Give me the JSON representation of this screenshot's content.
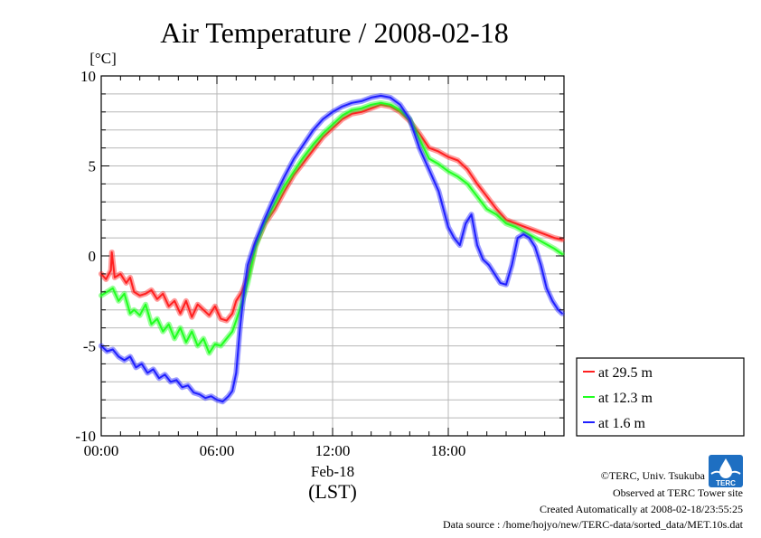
{
  "chart_data": {
    "type": "line",
    "title": "Air Temperature / 2008-02-18",
    "ylabel": "[°C]",
    "xlabel_lines": [
      "Feb-18",
      "(LST)"
    ],
    "x_unit": "hour of day (LST)",
    "xlim": [
      0,
      24
    ],
    "ylim": [
      -10,
      10
    ],
    "x_ticks": [
      0,
      6,
      12,
      18
    ],
    "x_tick_labels": [
      "00:00",
      "06:00",
      "12:00",
      "18:00"
    ],
    "y_ticks": [
      -10,
      -5,
      0,
      5,
      10
    ],
    "y_tick_labels": [
      "-10",
      "-5",
      "0",
      "5",
      "10"
    ],
    "grid": true,
    "legend_position": "right",
    "series": [
      {
        "name": "at 29.5 m",
        "color": "#ff2020",
        "x": [
          0,
          0.25,
          0.5,
          0.55,
          0.7,
          1.0,
          1.3,
          1.5,
          1.7,
          2.0,
          2.3,
          2.6,
          2.9,
          3.2,
          3.5,
          3.8,
          4.1,
          4.4,
          4.7,
          5.0,
          5.3,
          5.6,
          5.9,
          6.2,
          6.5,
          6.8,
          7.0,
          7.3,
          7.6,
          8.0,
          8.5,
          9.0,
          9.5,
          10.0,
          10.5,
          11.0,
          11.5,
          12.0,
          12.5,
          13.0,
          13.5,
          14.0,
          14.5,
          15.0,
          15.5,
          16.0,
          16.5,
          17.0,
          17.5,
          18.0,
          18.5,
          19.0,
          19.5,
          20.0,
          20.5,
          21.0,
          21.5,
          22.0,
          22.5,
          23.0,
          23.5,
          23.9
        ],
        "y": [
          -1.0,
          -1.3,
          -0.8,
          0.2,
          -1.2,
          -1.0,
          -1.5,
          -1.2,
          -2.0,
          -2.2,
          -2.1,
          -1.9,
          -2.4,
          -2.1,
          -2.8,
          -2.5,
          -3.2,
          -2.5,
          -3.4,
          -2.7,
          -3.0,
          -3.3,
          -2.8,
          -3.5,
          -3.6,
          -3.2,
          -2.5,
          -2.0,
          -1.2,
          0.6,
          1.8,
          2.6,
          3.6,
          4.5,
          5.2,
          5.9,
          6.6,
          7.1,
          7.6,
          7.9,
          8.0,
          8.2,
          8.4,
          8.3,
          8.0,
          7.5,
          6.8,
          6.0,
          5.8,
          5.5,
          5.3,
          4.8,
          4.0,
          3.3,
          2.6,
          2.0,
          1.8,
          1.6,
          1.4,
          1.2,
          1.0,
          0.9
        ]
      },
      {
        "name": "at 12.3 m",
        "color": "#20ff20",
        "x": [
          0,
          0.3,
          0.6,
          0.9,
          1.2,
          1.5,
          1.7,
          2.0,
          2.3,
          2.6,
          2.9,
          3.2,
          3.5,
          3.8,
          4.1,
          4.4,
          4.7,
          5.0,
          5.3,
          5.6,
          5.9,
          6.2,
          6.5,
          6.8,
          7.0,
          7.3,
          7.6,
          8.0,
          8.5,
          9.0,
          9.5,
          10.0,
          10.5,
          11.0,
          11.5,
          12.0,
          12.5,
          13.0,
          13.5,
          14.0,
          14.5,
          15.0,
          15.5,
          16.0,
          16.5,
          17.0,
          17.5,
          18.0,
          18.5,
          19.0,
          19.5,
          20.0,
          20.5,
          21.0,
          21.5,
          22.0,
          22.5,
          23.0,
          23.5,
          23.9
        ],
        "y": [
          -2.2,
          -2.0,
          -1.8,
          -2.5,
          -2.1,
          -3.2,
          -3.0,
          -3.3,
          -2.7,
          -3.8,
          -3.5,
          -4.2,
          -3.8,
          -4.6,
          -4.0,
          -4.8,
          -4.2,
          -5.0,
          -4.6,
          -5.4,
          -4.9,
          -5.0,
          -4.6,
          -4.2,
          -3.6,
          -2.6,
          -1.5,
          0.5,
          1.9,
          2.9,
          3.9,
          4.7,
          5.5,
          6.2,
          6.8,
          7.3,
          7.8,
          8.1,
          8.2,
          8.4,
          8.5,
          8.4,
          8.1,
          7.6,
          6.5,
          5.4,
          5.1,
          4.7,
          4.4,
          4.0,
          3.3,
          2.6,
          2.3,
          1.8,
          1.6,
          1.3,
          1.0,
          0.7,
          0.4,
          0.1
        ]
      },
      {
        "name": "at 1.6 m",
        "color": "#2020ff",
        "x": [
          0,
          0.3,
          0.6,
          0.9,
          1.2,
          1.5,
          1.8,
          2.1,
          2.4,
          2.7,
          3.0,
          3.3,
          3.6,
          3.9,
          4.2,
          4.5,
          4.8,
          5.1,
          5.4,
          5.7,
          6.0,
          6.3,
          6.6,
          6.8,
          7.0,
          7.2,
          7.4,
          7.6,
          8.0,
          8.5,
          9.0,
          9.5,
          10.0,
          10.5,
          11.0,
          11.5,
          12.0,
          12.5,
          13.0,
          13.5,
          14.0,
          14.5,
          15.0,
          15.5,
          16.0,
          16.5,
          17.0,
          17.5,
          18.0,
          18.3,
          18.6,
          18.9,
          19.2,
          19.5,
          19.8,
          20.1,
          20.4,
          20.7,
          21.0,
          21.3,
          21.6,
          21.9,
          22.2,
          22.5,
          22.8,
          23.1,
          23.4,
          23.7,
          23.9
        ],
        "y": [
          -5.0,
          -5.3,
          -5.2,
          -5.6,
          -5.8,
          -5.6,
          -6.2,
          -6.0,
          -6.5,
          -6.3,
          -6.8,
          -6.6,
          -7.0,
          -6.9,
          -7.3,
          -7.2,
          -7.6,
          -7.7,
          -7.9,
          -7.8,
          -8.0,
          -8.1,
          -7.8,
          -7.5,
          -6.5,
          -4.0,
          -2.0,
          -0.5,
          0.8,
          2.1,
          3.3,
          4.4,
          5.4,
          6.2,
          7.0,
          7.6,
          8.0,
          8.3,
          8.5,
          8.6,
          8.8,
          8.9,
          8.8,
          8.4,
          7.6,
          6.0,
          4.8,
          3.6,
          1.6,
          1.0,
          0.6,
          1.8,
          2.3,
          0.6,
          -0.2,
          -0.5,
          -1.0,
          -1.5,
          -1.6,
          -0.5,
          1.0,
          1.2,
          1.0,
          0.5,
          -0.5,
          -1.8,
          -2.5,
          -3.0,
          -3.2
        ]
      }
    ]
  },
  "credits": {
    "copyright": "©TERC, Univ. Tsukuba",
    "observed": "Observed at TERC Tower site",
    "created": "Created Automatically at 2008-02-18/23:55:25",
    "source": "Data source : /home/hojyo/new/TERC-data/sorted_data/MET.10s.dat"
  },
  "logo": {
    "text": "TERC",
    "color": "#1e6fc2"
  }
}
